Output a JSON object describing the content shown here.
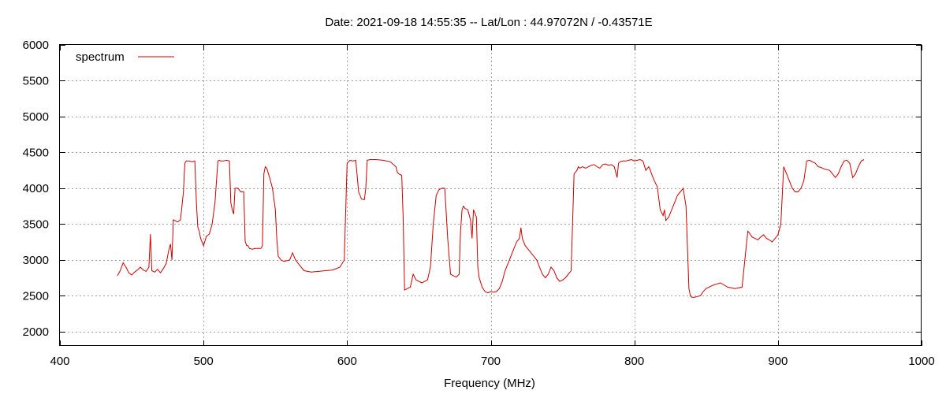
{
  "chart_data": {
    "type": "line",
    "title": "Date: 2021-09-18 14:55:35  --  Lat/Lon : 44.97072N / -0.43571E",
    "xlabel": "Frequency (MHz)",
    "ylabel": "",
    "xlim": [
      400,
      1000
    ],
    "ylim": [
      1800,
      6000
    ],
    "xticks": [
      400,
      500,
      600,
      700,
      800,
      900,
      1000
    ],
    "yticks": [
      2000,
      2500,
      3000,
      3500,
      4000,
      4500,
      5000,
      5500,
      6000
    ],
    "grid": true,
    "legend_position": "top-left",
    "series": [
      {
        "name": "spectrum",
        "color": "#cc0000",
        "x": [
          440,
          442,
          444,
          446,
          448,
          450,
          452,
          454,
          456,
          458,
          460,
          462,
          463,
          464,
          466,
          468,
          470,
          472,
          474,
          476,
          477,
          478,
          479,
          480,
          482,
          484,
          486,
          487,
          488,
          490,
          492,
          494,
          495,
          496,
          497,
          498,
          500,
          502,
          504,
          506,
          508,
          510,
          511,
          512,
          514,
          516,
          518,
          519,
          520,
          521,
          522,
          524,
          526,
          528,
          529,
          530,
          531,
          532,
          534,
          536,
          538,
          540,
          541,
          542,
          543,
          544,
          546,
          548,
          550,
          551,
          552,
          554,
          556,
          558,
          560,
          562,
          564,
          566,
          568,
          570,
          575,
          580,
          585,
          590,
          595,
          598,
          600,
          602,
          604,
          606,
          608,
          610,
          612,
          613,
          614,
          616,
          620,
          625,
          630,
          634,
          635,
          636,
          638,
          639,
          640,
          642,
          644,
          646,
          648,
          650,
          652,
          654,
          656,
          658,
          660,
          662,
          664,
          666,
          668,
          670,
          671,
          672,
          674,
          676,
          678,
          679,
          680,
          681,
          682,
          684,
          686,
          687,
          688,
          690,
          691,
          692,
          694,
          696,
          698,
          700,
          702,
          704,
          706,
          708,
          710,
          712,
          714,
          716,
          718,
          720,
          721,
          722,
          724,
          726,
          728,
          730,
          732,
          734,
          736,
          738,
          740,
          742,
          744,
          746,
          748,
          750,
          752,
          754,
          756,
          758,
          760,
          761,
          762,
          764,
          766,
          768,
          770,
          772,
          774,
          776,
          778,
          780,
          782,
          784,
          786,
          788,
          789,
          790,
          792,
          794,
          796,
          798,
          800,
          802,
          804,
          806,
          808,
          810,
          811,
          812,
          814,
          816,
          818,
          820,
          821,
          822,
          824,
          826,
          828,
          830,
          832,
          834,
          836,
          838,
          839,
          840,
          842,
          844,
          846,
          848,
          850,
          855,
          860,
          865,
          870,
          875,
          879,
          880,
          881,
          882,
          884,
          886,
          888,
          890,
          892,
          894,
          896,
          898,
          900,
          902,
          904,
          906,
          908,
          910,
          912,
          914,
          916,
          918,
          920,
          922,
          924,
          926,
          928,
          930,
          932,
          934,
          936,
          938,
          940,
          942,
          944,
          946,
          948,
          950,
          952,
          954,
          956,
          958,
          960
        ],
        "values": [
          2780,
          2850,
          2960,
          2900,
          2820,
          2790,
          2830,
          2860,
          2900,
          2860,
          2840,
          2900,
          3360,
          2850,
          2830,
          2870,
          2820,
          2880,
          2950,
          3150,
          3220,
          3000,
          3560,
          3550,
          3530,
          3560,
          3950,
          4350,
          4380,
          4380,
          4370,
          4380,
          3800,
          3460,
          3400,
          3300,
          3200,
          3330,
          3360,
          3500,
          3800,
          4380,
          4390,
          4380,
          4380,
          4390,
          4380,
          3800,
          3700,
          3640,
          4000,
          4000,
          3950,
          3950,
          3260,
          3200,
          3200,
          3160,
          3150,
          3160,
          3160,
          3160,
          3200,
          4200,
          4300,
          4280,
          4150,
          4000,
          3700,
          3300,
          3050,
          3000,
          2980,
          2990,
          3000,
          3100,
          3000,
          2950,
          2900,
          2850,
          2830,
          2840,
          2850,
          2860,
          2900,
          3000,
          4350,
          4390,
          4380,
          4390,
          3950,
          3850,
          3840,
          4000,
          4390,
          4400,
          4400,
          4390,
          4370,
          4300,
          4220,
          4200,
          4180,
          3600,
          2580,
          2600,
          2620,
          2800,
          2720,
          2700,
          2680,
          2700,
          2720,
          2900,
          3500,
          3900,
          3980,
          4000,
          4000,
          3300,
          3050,
          2800,
          2780,
          2760,
          2800,
          3400,
          3700,
          3750,
          3720,
          3700,
          3550,
          3300,
          3700,
          3600,
          2900,
          2750,
          2620,
          2560,
          2540,
          2560,
          2550,
          2560,
          2600,
          2700,
          2850,
          2950,
          3050,
          3150,
          3250,
          3300,
          3450,
          3300,
          3200,
          3150,
          3100,
          3050,
          3000,
          2900,
          2800,
          2750,
          2800,
          2900,
          2850,
          2750,
          2700,
          2720,
          2750,
          2800,
          2850,
          4200,
          4250,
          4300,
          4280,
          4300,
          4280,
          4300,
          4320,
          4330,
          4300,
          4280,
          4330,
          4340,
          4320,
          4330,
          4300,
          4150,
          4350,
          4370,
          4380,
          4380,
          4390,
          4400,
          4380,
          4390,
          4400,
          4380,
          4250,
          4300,
          4260,
          4200,
          4100,
          4020,
          3700,
          3620,
          3700,
          3550,
          3600,
          3700,
          3800,
          3900,
          3950,
          4000,
          3750,
          2600,
          2500,
          2480,
          2480,
          2490,
          2500,
          2560,
          2600,
          2650,
          2680,
          2620,
          2600,
          2620,
          3400,
          3380,
          3350,
          3320,
          3300,
          3280,
          3320,
          3350,
          3300,
          3280,
          3250,
          3300,
          3350,
          3500,
          4300,
          4200,
          4100,
          4000,
          3950,
          3950,
          4000,
          4100,
          4380,
          4390,
          4370,
          4350,
          4300,
          4290,
          4270,
          4260,
          4250,
          4200,
          4150,
          4200,
          4300,
          4380,
          4390,
          4350,
          4150,
          4200,
          4300,
          4380,
          4400
        ]
      }
    ]
  }
}
